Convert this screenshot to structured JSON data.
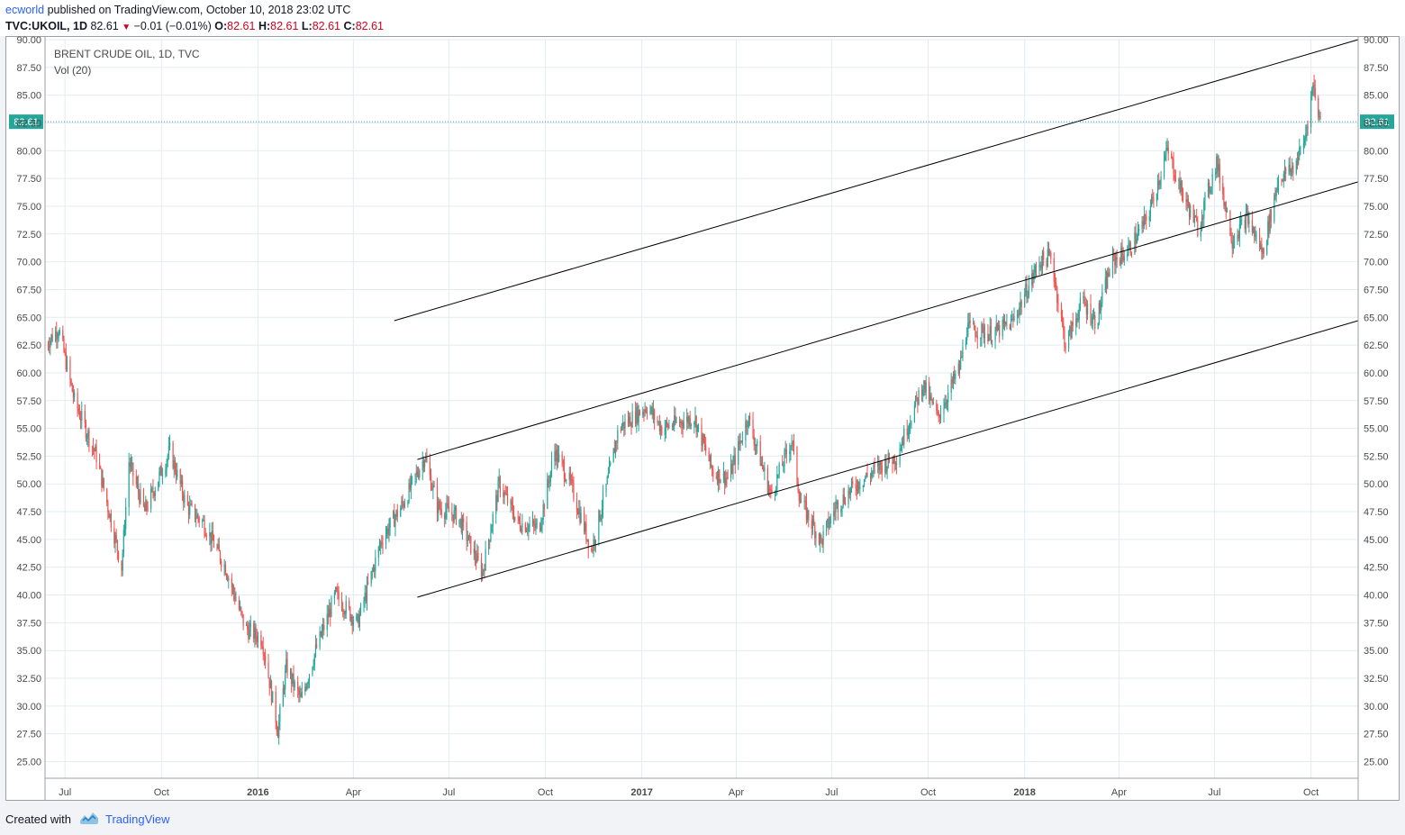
{
  "header": {
    "publisher": "ecworld",
    "published_text": "published on TradingView.com, October 10, 2018 23:02 UTC",
    "symbol": "TVC:UKOIL, 1D",
    "last": "82.61",
    "change": "−0.01 (−0.01%)",
    "o_label": "O:",
    "o_value": "82.61",
    "h_label": "H:",
    "h_value": "82.61",
    "l_label": "L:",
    "l_value": "82.61",
    "c_label": "C:",
    "c_value": "82.61"
  },
  "legend": {
    "title": "BRENT CRUDE OIL, 1D, TVC",
    "volume": "Vol (20)"
  },
  "footer": {
    "created_with": "Created with",
    "brand": "TradingView"
  },
  "colors": {
    "up": "#26a69a",
    "down": "#ef5350",
    "grid": "#e1ecf2",
    "price_line": "#26a69a",
    "trendline": "#000000"
  },
  "chart_data": {
    "type": "candlestick",
    "title": "BRENT CRUDE OIL, 1D, TVC",
    "y_ticks": [
      "25.00",
      "27.50",
      "30.00",
      "32.50",
      "35.00",
      "37.50",
      "40.00",
      "42.50",
      "45.00",
      "47.50",
      "50.00",
      "52.50",
      "55.00",
      "57.50",
      "60.00",
      "62.50",
      "65.00",
      "67.50",
      "70.00",
      "72.50",
      "75.00",
      "77.50",
      "80.00",
      "82.50",
      "85.00",
      "87.50",
      "90.00"
    ],
    "y_range": [
      23.5,
      90.0
    ],
    "x_range": [
      "2015-06-12",
      "2018-11-15"
    ],
    "x_ticks": [
      {
        "label": "Jul",
        "date": "2015-07-01",
        "bold": false
      },
      {
        "label": "Oct",
        "date": "2015-10-01",
        "bold": false
      },
      {
        "label": "2016",
        "date": "2016-01-01",
        "bold": true
      },
      {
        "label": "Apr",
        "date": "2016-04-01",
        "bold": false
      },
      {
        "label": "Jul",
        "date": "2016-07-01",
        "bold": false
      },
      {
        "label": "Oct",
        "date": "2016-10-01",
        "bold": false
      },
      {
        "label": "2017",
        "date": "2017-01-01",
        "bold": true
      },
      {
        "label": "Apr",
        "date": "2017-04-01",
        "bold": false
      },
      {
        "label": "Jul",
        "date": "2017-07-01",
        "bold": false
      },
      {
        "label": "Oct",
        "date": "2017-10-01",
        "bold": false
      },
      {
        "label": "2018",
        "date": "2018-01-01",
        "bold": true
      },
      {
        "label": "Apr",
        "date": "2018-04-01",
        "bold": false
      },
      {
        "label": "Jul",
        "date": "2018-07-01",
        "bold": false
      },
      {
        "label": "Oct",
        "date": "2018-10-01",
        "bold": false
      }
    ],
    "last_price": {
      "value": 82.61,
      "label": "82.61"
    },
    "anchors": [
      [
        "2015-06-12",
        62.5
      ],
      [
        "2015-06-25",
        64.0
      ],
      [
        "2015-07-10",
        57.5
      ],
      [
        "2015-07-31",
        52.5
      ],
      [
        "2015-08-24",
        42.5
      ],
      [
        "2015-08-31",
        52.0
      ],
      [
        "2015-09-15",
        47.5
      ],
      [
        "2015-10-09",
        53.0
      ],
      [
        "2015-10-25",
        48.0
      ],
      [
        "2015-11-10",
        46.5
      ],
      [
        "2015-12-01",
        42.5
      ],
      [
        "2015-12-20",
        37.0
      ],
      [
        "2016-01-05",
        36.0
      ],
      [
        "2016-01-20",
        27.8
      ],
      [
        "2016-01-28",
        33.5
      ],
      [
        "2016-02-11",
        30.5
      ],
      [
        "2016-02-25",
        35.0
      ],
      [
        "2016-03-15",
        40.0
      ],
      [
        "2016-04-05",
        37.5
      ],
      [
        "2016-04-28",
        45.0
      ],
      [
        "2016-05-20",
        48.5
      ],
      [
        "2016-06-08",
        52.5
      ],
      [
        "2016-06-20",
        48.0
      ],
      [
        "2016-07-10",
        47.0
      ],
      [
        "2016-08-02",
        42.0
      ],
      [
        "2016-08-18",
        50.0
      ],
      [
        "2016-09-05",
        46.5
      ],
      [
        "2016-09-25",
        46.0
      ],
      [
        "2016-10-10",
        53.0
      ],
      [
        "2016-10-25",
        50.0
      ],
      [
        "2016-11-14",
        44.0
      ],
      [
        "2016-11-30",
        50.5
      ],
      [
        "2016-12-10",
        55.0
      ],
      [
        "2017-01-06",
        57.0
      ],
      [
        "2017-01-20",
        55.0
      ],
      [
        "2017-02-20",
        56.0
      ],
      [
        "2017-03-10",
        51.0
      ],
      [
        "2017-03-25",
        50.5
      ],
      [
        "2017-04-12",
        56.0
      ],
      [
        "2017-05-04",
        49.0
      ],
      [
        "2017-05-24",
        54.0
      ],
      [
        "2017-06-01",
        48.5
      ],
      [
        "2017-06-21",
        44.8
      ],
      [
        "2017-07-05",
        48.0
      ],
      [
        "2017-07-25",
        50.0
      ],
      [
        "2017-08-15",
        51.5
      ],
      [
        "2017-09-01",
        52.5
      ],
      [
        "2017-09-26",
        59.0
      ],
      [
        "2017-10-10",
        56.0
      ],
      [
        "2017-10-31",
        60.5
      ],
      [
        "2017-11-07",
        64.0
      ],
      [
        "2017-12-01",
        63.5
      ],
      [
        "2017-12-20",
        64.5
      ],
      [
        "2018-01-15",
        70.0
      ],
      [
        "2018-01-26",
        70.5
      ],
      [
        "2018-02-09",
        62.5
      ],
      [
        "2018-02-25",
        66.5
      ],
      [
        "2018-03-10",
        64.5
      ],
      [
        "2018-03-25",
        70.0
      ],
      [
        "2018-04-10",
        71.0
      ],
      [
        "2018-04-28",
        74.0
      ],
      [
        "2018-05-17",
        80.0
      ],
      [
        "2018-06-01",
        76.0
      ],
      [
        "2018-06-15",
        73.0
      ],
      [
        "2018-07-03",
        79.0
      ],
      [
        "2018-07-18",
        72.0
      ],
      [
        "2018-08-01",
        74.0
      ],
      [
        "2018-08-16",
        70.8
      ],
      [
        "2018-08-31",
        77.5
      ],
      [
        "2018-09-15",
        78.5
      ],
      [
        "2018-09-25",
        81.0
      ],
      [
        "2018-10-03",
        86.0
      ],
      [
        "2018-10-10",
        82.61
      ]
    ],
    "trendlines": [
      {
        "name": "upper-channel",
        "from": [
          "2016-05-10",
          64.7
        ],
        "to": [
          "2018-11-15",
          90.0
        ]
      },
      {
        "name": "middle-channel",
        "from": [
          "2016-06-01",
          52.2
        ],
        "to": [
          "2018-11-15",
          77.2
        ]
      },
      {
        "name": "lower-channel",
        "from": [
          "2016-06-01",
          39.8
        ],
        "to": [
          "2018-11-15",
          64.7
        ]
      }
    ]
  }
}
